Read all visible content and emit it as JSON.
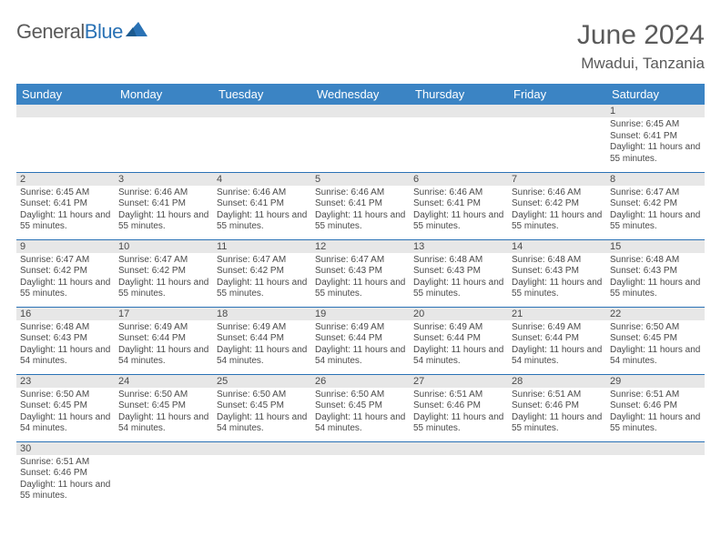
{
  "logo": {
    "text1": "General",
    "text2": "Blue"
  },
  "title": "June 2024",
  "location": "Mwadui, Tanzania",
  "colors": {
    "header_bg": "#3b84c4",
    "header_fg": "#ffffff",
    "divider": "#2a72b5",
    "daynum_bg": "#e7e7e7",
    "text": "#4a4a4a",
    "title_color": "#5a5a5a"
  },
  "fonts": {
    "title_size": 30,
    "location_size": 17,
    "dayhead_size": 13,
    "daynum_size": 11,
    "body_size": 10
  },
  "dayheads": [
    "Sunday",
    "Monday",
    "Tuesday",
    "Wednesday",
    "Thursday",
    "Friday",
    "Saturday"
  ],
  "weeks": [
    [
      null,
      null,
      null,
      null,
      null,
      null,
      {
        "n": "1",
        "sunrise": "6:45 AM",
        "sunset": "6:41 PM",
        "daylight": "11 hours and 55 minutes."
      }
    ],
    [
      {
        "n": "2",
        "sunrise": "6:45 AM",
        "sunset": "6:41 PM",
        "daylight": "11 hours and 55 minutes."
      },
      {
        "n": "3",
        "sunrise": "6:46 AM",
        "sunset": "6:41 PM",
        "daylight": "11 hours and 55 minutes."
      },
      {
        "n": "4",
        "sunrise": "6:46 AM",
        "sunset": "6:41 PM",
        "daylight": "11 hours and 55 minutes."
      },
      {
        "n": "5",
        "sunrise": "6:46 AM",
        "sunset": "6:41 PM",
        "daylight": "11 hours and 55 minutes."
      },
      {
        "n": "6",
        "sunrise": "6:46 AM",
        "sunset": "6:41 PM",
        "daylight": "11 hours and 55 minutes."
      },
      {
        "n": "7",
        "sunrise": "6:46 AM",
        "sunset": "6:42 PM",
        "daylight": "11 hours and 55 minutes."
      },
      {
        "n": "8",
        "sunrise": "6:47 AM",
        "sunset": "6:42 PM",
        "daylight": "11 hours and 55 minutes."
      }
    ],
    [
      {
        "n": "9",
        "sunrise": "6:47 AM",
        "sunset": "6:42 PM",
        "daylight": "11 hours and 55 minutes."
      },
      {
        "n": "10",
        "sunrise": "6:47 AM",
        "sunset": "6:42 PM",
        "daylight": "11 hours and 55 minutes."
      },
      {
        "n": "11",
        "sunrise": "6:47 AM",
        "sunset": "6:42 PM",
        "daylight": "11 hours and 55 minutes."
      },
      {
        "n": "12",
        "sunrise": "6:47 AM",
        "sunset": "6:43 PM",
        "daylight": "11 hours and 55 minutes."
      },
      {
        "n": "13",
        "sunrise": "6:48 AM",
        "sunset": "6:43 PM",
        "daylight": "11 hours and 55 minutes."
      },
      {
        "n": "14",
        "sunrise": "6:48 AM",
        "sunset": "6:43 PM",
        "daylight": "11 hours and 55 minutes."
      },
      {
        "n": "15",
        "sunrise": "6:48 AM",
        "sunset": "6:43 PM",
        "daylight": "11 hours and 55 minutes."
      }
    ],
    [
      {
        "n": "16",
        "sunrise": "6:48 AM",
        "sunset": "6:43 PM",
        "daylight": "11 hours and 54 minutes."
      },
      {
        "n": "17",
        "sunrise": "6:49 AM",
        "sunset": "6:44 PM",
        "daylight": "11 hours and 54 minutes."
      },
      {
        "n": "18",
        "sunrise": "6:49 AM",
        "sunset": "6:44 PM",
        "daylight": "11 hours and 54 minutes."
      },
      {
        "n": "19",
        "sunrise": "6:49 AM",
        "sunset": "6:44 PM",
        "daylight": "11 hours and 54 minutes."
      },
      {
        "n": "20",
        "sunrise": "6:49 AM",
        "sunset": "6:44 PM",
        "daylight": "11 hours and 54 minutes."
      },
      {
        "n": "21",
        "sunrise": "6:49 AM",
        "sunset": "6:44 PM",
        "daylight": "11 hours and 54 minutes."
      },
      {
        "n": "22",
        "sunrise": "6:50 AM",
        "sunset": "6:45 PM",
        "daylight": "11 hours and 54 minutes."
      }
    ],
    [
      {
        "n": "23",
        "sunrise": "6:50 AM",
        "sunset": "6:45 PM",
        "daylight": "11 hours and 54 minutes."
      },
      {
        "n": "24",
        "sunrise": "6:50 AM",
        "sunset": "6:45 PM",
        "daylight": "11 hours and 54 minutes."
      },
      {
        "n": "25",
        "sunrise": "6:50 AM",
        "sunset": "6:45 PM",
        "daylight": "11 hours and 54 minutes."
      },
      {
        "n": "26",
        "sunrise": "6:50 AM",
        "sunset": "6:45 PM",
        "daylight": "11 hours and 54 minutes."
      },
      {
        "n": "27",
        "sunrise": "6:51 AM",
        "sunset": "6:46 PM",
        "daylight": "11 hours and 55 minutes."
      },
      {
        "n": "28",
        "sunrise": "6:51 AM",
        "sunset": "6:46 PM",
        "daylight": "11 hours and 55 minutes."
      },
      {
        "n": "29",
        "sunrise": "6:51 AM",
        "sunset": "6:46 PM",
        "daylight": "11 hours and 55 minutes."
      }
    ],
    [
      {
        "n": "30",
        "sunrise": "6:51 AM",
        "sunset": "6:46 PM",
        "daylight": "11 hours and 55 minutes."
      },
      null,
      null,
      null,
      null,
      null,
      null
    ]
  ],
  "labels": {
    "sunrise": "Sunrise: ",
    "sunset": "Sunset: ",
    "daylight": "Daylight: "
  }
}
